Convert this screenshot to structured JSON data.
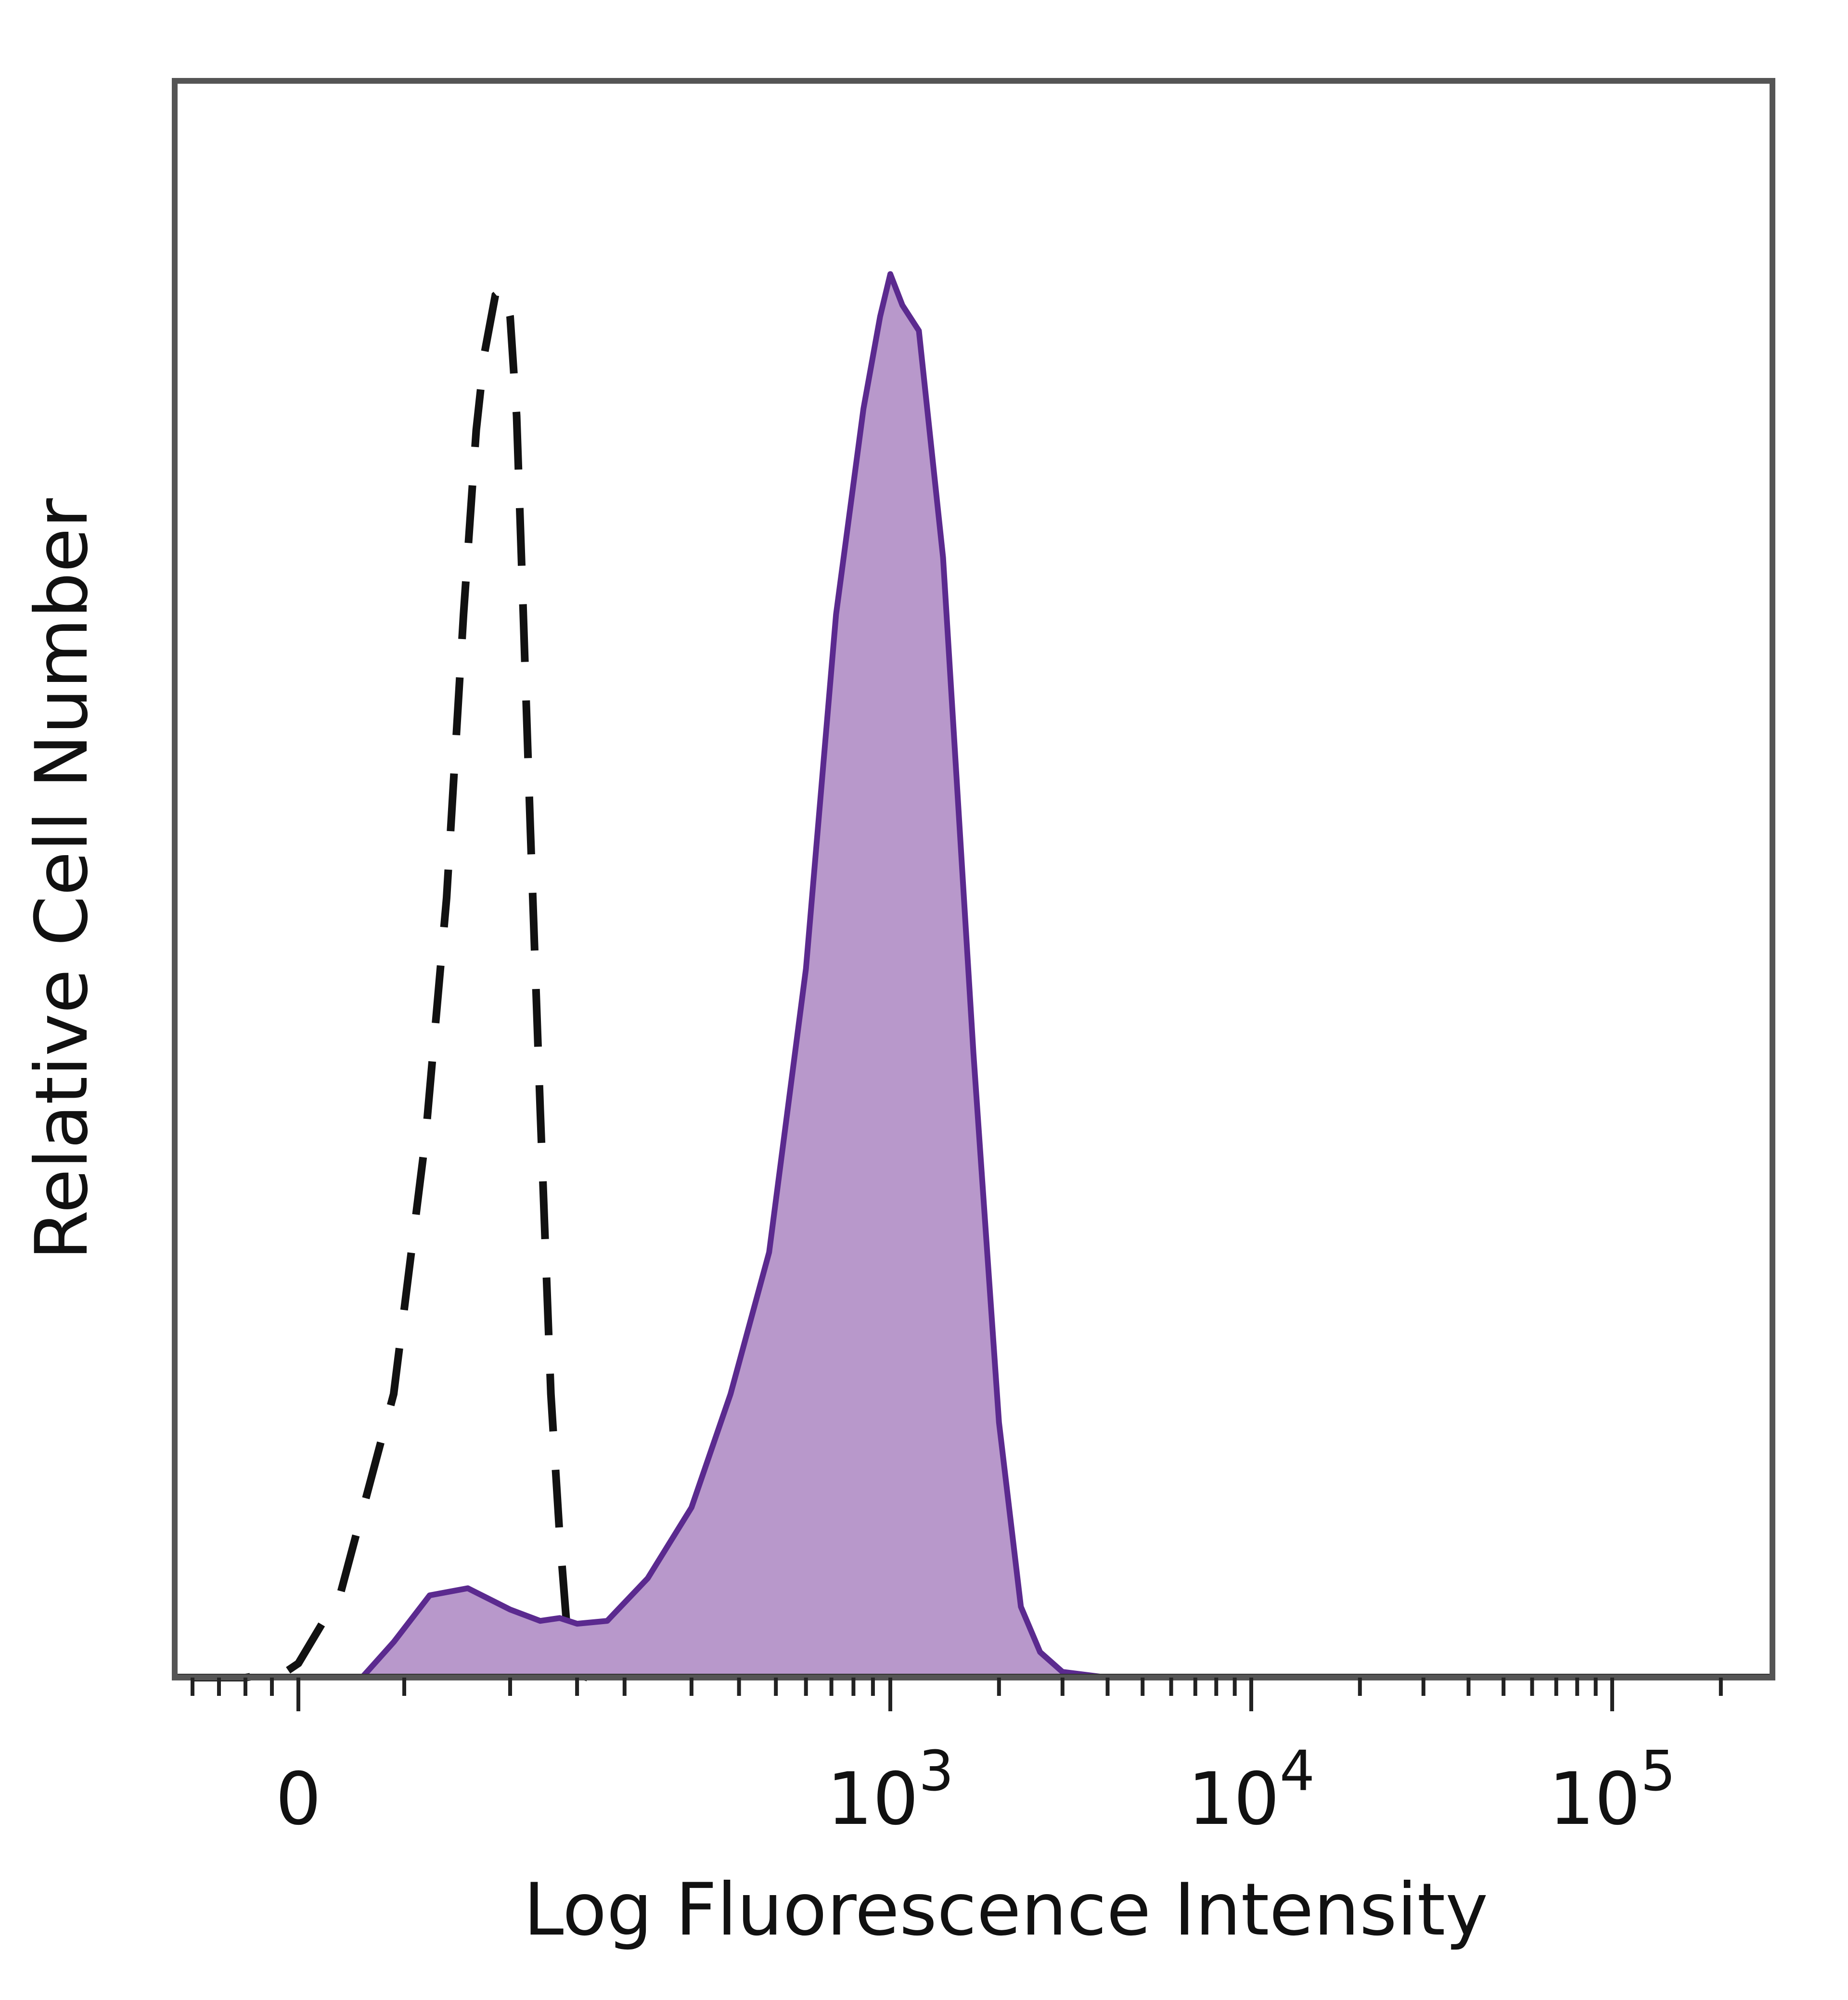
{
  "chart_data": {
    "type": "area",
    "title": "",
    "xlabel": "Log Fluorescence Intensity",
    "ylabel": "Relative Cell Number",
    "x_scale": "biexponential",
    "xlim": [
      -200,
      200000
    ],
    "ylim": [
      0,
      1
    ],
    "grid": false,
    "legend": "none",
    "x_ticks": [
      {
        "value": 0,
        "base": "0",
        "exp": ""
      },
      {
        "value": 1000,
        "base": "10",
        "exp": "3"
      },
      {
        "value": 10000,
        "base": "10",
        "exp": "4"
      },
      {
        "value": 100000,
        "base": "10",
        "exp": "5"
      }
    ],
    "series": [
      {
        "style": "dashed",
        "color": "#111111",
        "fill": "none",
        "points": [
          [
            -200,
            0
          ],
          [
            -100,
            0
          ],
          [
            -20,
            0.005
          ],
          [
            0,
            0.01
          ],
          [
            20,
            0.06
          ],
          [
            45,
            0.2
          ],
          [
            60,
            0.38
          ],
          [
            70,
            0.55
          ],
          [
            78,
            0.75
          ],
          [
            84,
            0.88
          ],
          [
            88,
            0.935
          ],
          [
            93,
            0.975
          ],
          [
            97,
            0.98
          ],
          [
            100,
            0.96
          ],
          [
            104,
            0.89
          ],
          [
            108,
            0.76
          ],
          [
            113,
            0.6
          ],
          [
            120,
            0.4
          ],
          [
            128,
            0.2
          ],
          [
            135,
            0.1
          ],
          [
            142,
            0.025
          ],
          [
            148,
            0.003
          ],
          [
            160,
            0
          ]
        ]
      },
      {
        "style": "filled",
        "color": "#5b2a8f",
        "fill": "#b898cb",
        "points": [
          [
            30,
            0
          ],
          [
            45,
            0.025
          ],
          [
            62,
            0.058
          ],
          [
            80,
            0.063
          ],
          [
            100,
            0.048
          ],
          [
            120,
            0.04
          ],
          [
            135,
            0.042
          ],
          [
            150,
            0.038
          ],
          [
            180,
            0.04
          ],
          [
            230,
            0.07
          ],
          [
            300,
            0.12
          ],
          [
            380,
            0.2
          ],
          [
            480,
            0.3
          ],
          [
            600,
            0.5
          ],
          [
            720,
            0.75
          ],
          [
            850,
            0.895
          ],
          [
            940,
            0.96
          ],
          [
            1000,
            0.99
          ],
          [
            1080,
            0.968
          ],
          [
            1200,
            0.95
          ],
          [
            1400,
            0.79
          ],
          [
            1700,
            0.44
          ],
          [
            2000,
            0.18
          ],
          [
            2300,
            0.05
          ],
          [
            2600,
            0.018
          ],
          [
            3000,
            0.004
          ],
          [
            4000,
            0
          ],
          [
            200000,
            0
          ]
        ]
      }
    ]
  }
}
